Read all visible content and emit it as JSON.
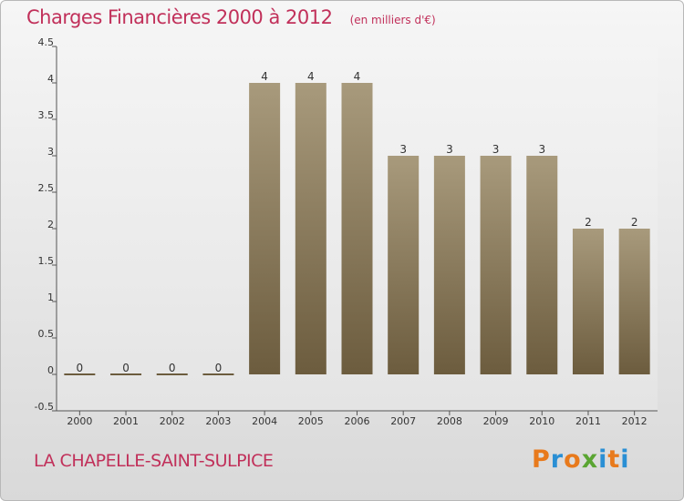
{
  "header": {
    "title": "Charges Financières 2000 à 2012",
    "subtitle": "(en milliers d'€)"
  },
  "footer": {
    "commune": "LA CHAPELLE-SAINT-SULPICE",
    "logo_text": "Proxiti",
    "logo_colors": [
      "#e87a1c",
      "#2a8fd4",
      "#e87a1c",
      "#5aa532",
      "#2a8fd4",
      "#e87a1c",
      "#2a8fd4"
    ]
  },
  "colors": {
    "title": "#c1305a",
    "bar_top": "#a89a7c",
    "bar_bottom": "#6c5c3e"
  },
  "chart_data": {
    "type": "bar",
    "categories": [
      "2000",
      "2001",
      "2002",
      "2003",
      "2004",
      "2005",
      "2006",
      "2007",
      "2008",
      "2009",
      "2010",
      "2011",
      "2012"
    ],
    "values": [
      0,
      0,
      0,
      0,
      4,
      4,
      4,
      3,
      3,
      3,
      3,
      2,
      2
    ],
    "data_labels": [
      "0",
      "0",
      "0",
      "0",
      "4",
      "4",
      "4",
      "3",
      "3",
      "3",
      "3",
      "2",
      "2"
    ],
    "yticks": [
      "-0.5",
      "0",
      "0.5",
      "1",
      "1.5",
      "2",
      "2.5",
      "3",
      "3.5",
      "4",
      "4.5"
    ],
    "ylim": [
      -0.5,
      4.5
    ],
    "grid": false,
    "title": "Charges Financières 2000 à 2012",
    "xlabel": "",
    "ylabel": ""
  }
}
